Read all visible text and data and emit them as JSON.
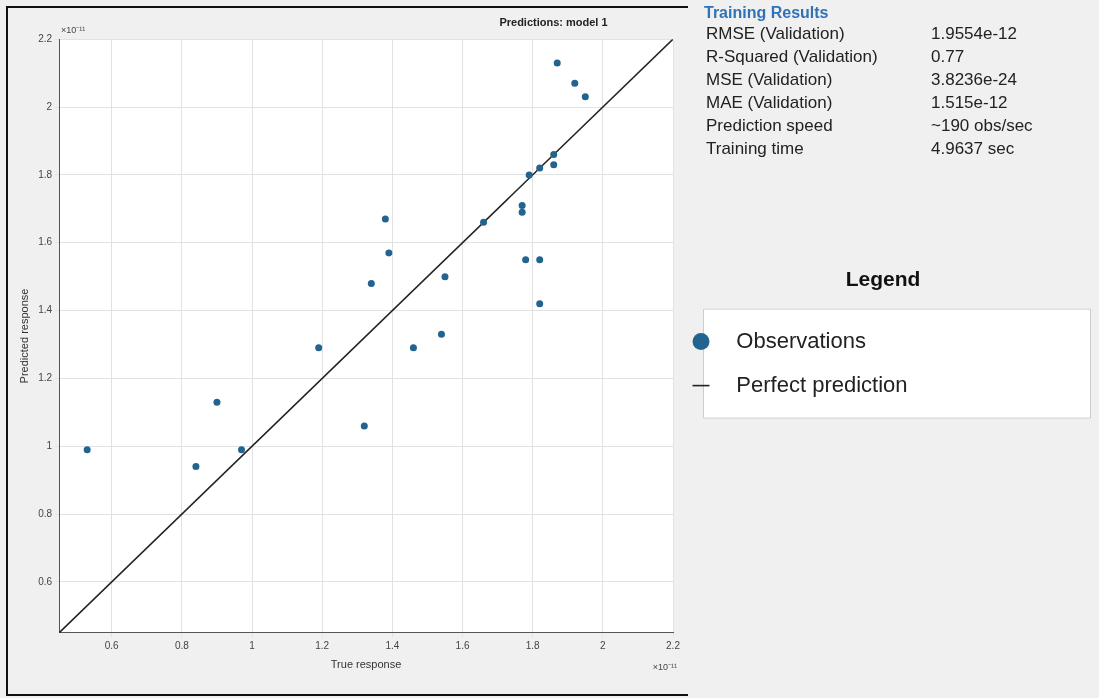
{
  "chart_data": [
    {
      "type": "scatter",
      "title": "Predictions: model 1",
      "xlabel": "True response",
      "ylabel": "Predicted response",
      "legend_title": "Legend",
      "legend": "right",
      "grid": true,
      "marker": "circle",
      "xlim": [
        0.45,
        2.2
      ],
      "ylim": [
        0.45,
        2.2
      ],
      "xticks": [
        0.6,
        0.8,
        1,
        1.2,
        1.4,
        1.6,
        1.8,
        2,
        2.2
      ],
      "yticks": [
        0.6,
        0.8,
        1,
        1.2,
        1.4,
        1.6,
        1.8,
        2,
        2.2
      ],
      "annotations": [
        "×10⁻¹¹",
        "×10⁻¹¹"
      ],
      "series": [
        {
          "name": "Observations",
          "type": "scatter",
          "color": "#22638f",
          "x": [
            0.53,
            0.84,
            0.9,
            0.97,
            1.19,
            1.32,
            1.46,
            1.54,
            1.87,
            1.92,
            1.95,
            1.86,
            1.86,
            1.82,
            1.79,
            1.77,
            1.77,
            1.66,
            1.38,
            1.39,
            1.34,
            1.55,
            1.78,
            1.82,
            1.82
          ],
          "values": [
            0.99,
            0.94,
            1.13,
            0.99,
            1.29,
            1.06,
            1.29,
            1.33,
            2.13,
            2.07,
            2.03,
            1.86,
            1.83,
            1.82,
            1.8,
            1.71,
            1.69,
            1.66,
            1.67,
            1.57,
            1.48,
            1.5,
            1.55,
            1.55,
            1.42
          ]
        },
        {
          "name": "Perfect prediction",
          "type": "line",
          "color": "#222222",
          "marker": "none",
          "x": [
            0.45,
            2.2
          ],
          "values": [
            0.45,
            2.2
          ]
        }
      ]
    },
    {
      "type": "other",
      "title": "Training Results",
      "annotations": [
        "RMSE (Validation)",
        "1.9554e-12",
        "R-Squared (Validation)",
        "0.77",
        "MSE (Validation)",
        "3.8236e-24",
        "MAE (Validation)",
        "1.515e-12",
        "Prediction speed",
        "~190 obs/sec",
        "Training time",
        "4.9637 sec"
      ]
    }
  ]
}
